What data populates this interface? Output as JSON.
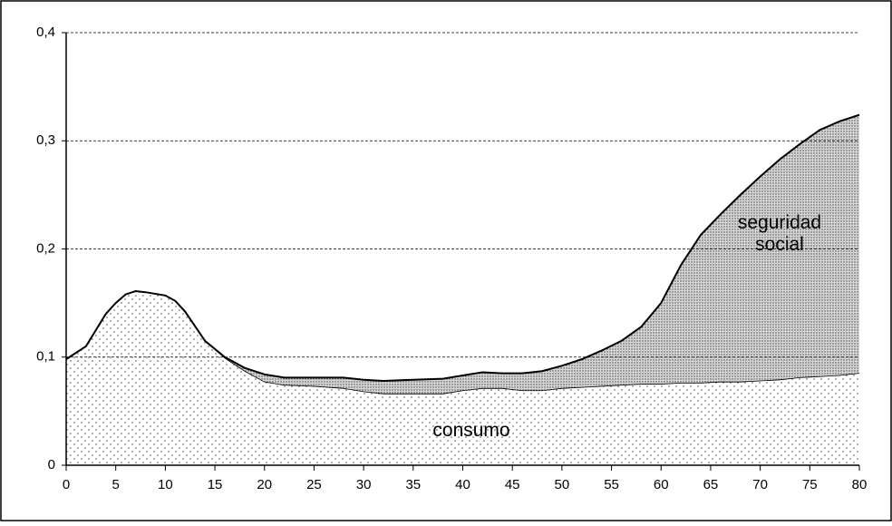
{
  "chart_data": {
    "type": "stacked_area",
    "x": [
      0,
      2,
      4,
      5,
      6,
      7,
      8,
      10,
      11,
      12,
      14,
      16,
      18,
      20,
      22,
      25,
      28,
      30,
      32,
      35,
      38,
      40,
      42,
      44,
      46,
      48,
      50,
      52,
      54,
      56,
      58,
      60,
      62,
      64,
      66,
      68,
      70,
      72,
      74,
      76,
      78,
      80
    ],
    "series": [
      {
        "name": "consumo",
        "color": "#ffffff",
        "values": [
          0.098,
          0.11,
          0.14,
          0.15,
          0.158,
          0.161,
          0.16,
          0.157,
          0.152,
          0.142,
          0.115,
          0.099,
          0.087,
          0.077,
          0.074,
          0.073,
          0.071,
          0.068,
          0.066,
          0.066,
          0.066,
          0.069,
          0.071,
          0.071,
          0.069,
          0.069,
          0.071,
          0.072,
          0.073,
          0.074,
          0.075,
          0.075,
          0.076,
          0.076,
          0.077,
          0.077,
          0.078,
          0.079,
          0.081,
          0.082,
          0.083,
          0.085
        ]
      },
      {
        "name": "seguridad social",
        "color": "#c8c8c8",
        "values": [
          0,
          0,
          0,
          0,
          0,
          0,
          0,
          0,
          0,
          0,
          0,
          0.001,
          0.003,
          0.007,
          0.007,
          0.008,
          0.01,
          0.011,
          0.012,
          0.013,
          0.014,
          0.014,
          0.015,
          0.014,
          0.016,
          0.018,
          0.021,
          0.026,
          0.033,
          0.041,
          0.053,
          0.075,
          0.109,
          0.137,
          0.155,
          0.173,
          0.189,
          0.204,
          0.216,
          0.228,
          0.235,
          0.239
        ]
      }
    ],
    "xlim": [
      0,
      80
    ],
    "xticks": [
      0,
      5,
      10,
      15,
      20,
      25,
      30,
      35,
      40,
      45,
      50,
      55,
      60,
      65,
      70,
      75,
      80
    ],
    "ylim": [
      0,
      0.4
    ],
    "yticks": [
      0,
      {
        "value": 0.1,
        "label": "0,1"
      },
      {
        "value": 0.2,
        "label": "0,2"
      },
      {
        "value": 0.3,
        "label": "0,3"
      },
      {
        "value": 0.4,
        "label": "0,4"
      }
    ],
    "grid": true
  }
}
